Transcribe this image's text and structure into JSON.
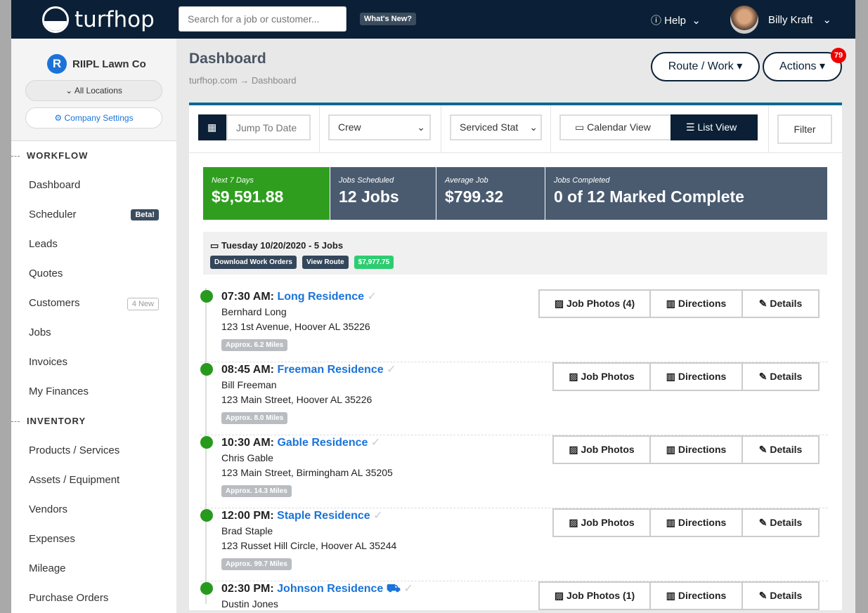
{
  "header": {
    "logo": "turfhop",
    "search_placeholder": "Search for a job or customer...",
    "whats_new": "What's New?",
    "help": "Help",
    "user": "Billy Kraft"
  },
  "sidebar": {
    "company": "RIIPL Lawn Co",
    "company_initial": "R",
    "locations": "All Locations",
    "settings": "Company Settings",
    "sections": [
      {
        "title": "WORKFLOW",
        "items": [
          {
            "label": "Dashboard"
          },
          {
            "label": "Scheduler",
            "badge": "Beta!"
          },
          {
            "label": "Leads"
          },
          {
            "label": "Quotes"
          },
          {
            "label": "Customers",
            "badge": "4 New"
          },
          {
            "label": "Jobs"
          },
          {
            "label": "Invoices"
          },
          {
            "label": "My Finances"
          }
        ]
      },
      {
        "title": "INVENTORY",
        "items": [
          {
            "label": "Products / Services"
          },
          {
            "label": "Assets / Equipment"
          },
          {
            "label": "Vendors"
          },
          {
            "label": "Expenses"
          },
          {
            "label": "Mileage"
          },
          {
            "label": "Purchase Orders"
          }
        ]
      }
    ]
  },
  "page": {
    "title": "Dashboard",
    "crumb_root": "turfhop.com",
    "crumb_sep": "→",
    "crumb_current": "Dashboard",
    "route_work": "Route / Work",
    "actions": "Actions",
    "actions_count": "79"
  },
  "toolbar": {
    "jump_placeholder": "Jump To Date",
    "crew": "Crew",
    "serviced": "Serviced Stat",
    "calendar_view": "Calendar View",
    "list_view": "List View",
    "filter": "Filter"
  },
  "stats": [
    {
      "label": "Next 7 Days",
      "value": "$9,591.88",
      "color": "#2f9e1f"
    },
    {
      "label": "Jobs Scheduled",
      "value": "12 Jobs"
    },
    {
      "label": "Average Job",
      "value": "$799.32"
    },
    {
      "label": "Jobs Completed",
      "value": "0 of 12 Marked Complete"
    }
  ],
  "day": {
    "title": "Tuesday 10/20/2020 - 5 Jobs",
    "download": "Download Work Orders",
    "view_route": "View Route",
    "total": "$7,977.75"
  },
  "jobs": [
    {
      "time": "07:30 AM:",
      "name": "Long Residence",
      "customer": "Bernhard Long",
      "address": "123 1st Avenue, Hoover AL 35226",
      "miles": "Approx. 6.2 Miles",
      "photos": "Job Photos (4)"
    },
    {
      "time": "08:45 AM:",
      "name": "Freeman Residence",
      "customer": "Bill Freeman",
      "address": "123 Main Street, Hoover AL 35226",
      "miles": "Approx. 8.0 Miles",
      "photos": "Job Photos"
    },
    {
      "time": "10:30 AM:",
      "name": "Gable Residence",
      "customer": "Chris Gable",
      "address": "123 Main Street, Birmingham AL 35205",
      "miles": "Approx. 14.3 Miles",
      "photos": "Job Photos"
    },
    {
      "time": "12:00 PM:",
      "name": "Staple Residence",
      "customer": "Brad Staple",
      "address": "123 Russet Hill Circle, Hoover AL 35244",
      "miles": "Approx. 99.7 Miles",
      "photos": "Job Photos"
    },
    {
      "time": "02:30 PM:",
      "name": "Johnson Residence",
      "customer": "Dustin Jones",
      "address": "",
      "miles": "",
      "photos": "Job Photos (1)"
    }
  ],
  "job_buttons": {
    "directions": "Directions",
    "details": "Details"
  }
}
